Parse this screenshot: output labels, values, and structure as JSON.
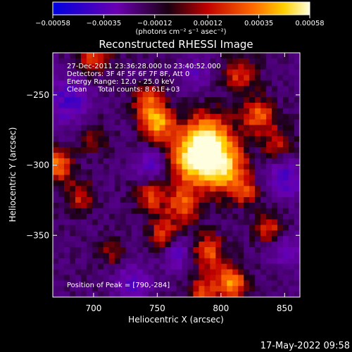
{
  "colorbar": {
    "ticks": [
      "−0.00058",
      "−0.00035",
      "−0.00012",
      "0.00012",
      "0.00035",
      "0.00058"
    ],
    "tick_values": [
      -0.00058,
      -0.00035,
      -0.00012,
      0.00012,
      0.00035,
      0.00058
    ],
    "range": [
      -0.00058,
      0.00058
    ],
    "unit_label": "(photons cm⁻² s⁻¹ asec⁻²)",
    "colors": [
      "#0000e0",
      "#6a00b0",
      "#1a0010",
      "#c00000",
      "#ff6a00",
      "#ffd000",
      "#ffffe0"
    ]
  },
  "chart_data": {
    "type": "heatmap",
    "title": "Reconstructed RHESSI Image",
    "xlabel": "Heliocentric X (arcsec)",
    "ylabel": "Heliocentric Y (arcsec)",
    "xlim": [
      668,
      862
    ],
    "ylim": [
      -394,
      -220
    ],
    "xticks": [
      700,
      750,
      800,
      850
    ],
    "yticks": [
      -250,
      -300,
      -350
    ],
    "xtick_labels": [
      "700",
      "750",
      "800",
      "850"
    ],
    "ytick_labels": [
      "−250",
      "−300",
      "−350"
    ],
    "peak": [
      790,
      -284
    ],
    "hotspots": [
      {
        "x": 790,
        "y": -284,
        "v": 1.0,
        "r": 14
      },
      {
        "x": 778,
        "y": -298,
        "v": 0.75,
        "r": 14
      },
      {
        "x": 805,
        "y": -305,
        "v": 0.7,
        "r": 12
      },
      {
        "x": 750,
        "y": -270,
        "v": 0.85,
        "r": 9
      },
      {
        "x": 742,
        "y": -254,
        "v": 0.5,
        "r": 8
      },
      {
        "x": 700,
        "y": -222,
        "v": 0.55,
        "r": 9
      },
      {
        "x": 815,
        "y": -235,
        "v": 0.5,
        "r": 9
      },
      {
        "x": 830,
        "y": -265,
        "v": 0.6,
        "r": 9
      },
      {
        "x": 845,
        "y": -285,
        "v": 0.45,
        "r": 8
      },
      {
        "x": 672,
        "y": -300,
        "v": 0.7,
        "r": 8
      },
      {
        "x": 690,
        "y": -322,
        "v": 0.45,
        "r": 8
      },
      {
        "x": 745,
        "y": -322,
        "v": 0.5,
        "r": 9
      },
      {
        "x": 770,
        "y": -330,
        "v": 0.55,
        "r": 9
      },
      {
        "x": 755,
        "y": -350,
        "v": 0.55,
        "r": 8
      },
      {
        "x": 790,
        "y": -362,
        "v": 0.6,
        "r": 9
      },
      {
        "x": 838,
        "y": -345,
        "v": 0.55,
        "r": 8
      },
      {
        "x": 808,
        "y": -384,
        "v": 0.75,
        "r": 9
      },
      {
        "x": 785,
        "y": -390,
        "v": 0.55,
        "r": 7
      },
      {
        "x": 700,
        "y": -280,
        "v": 0.35,
        "r": 8
      },
      {
        "x": 715,
        "y": -362,
        "v": 0.35,
        "r": 7
      },
      {
        "x": 820,
        "y": -320,
        "v": 0.4,
        "r": 7
      }
    ],
    "coldspots": [
      {
        "x": 680,
        "y": -255,
        "v": -0.5,
        "r": 12
      },
      {
        "x": 745,
        "y": -300,
        "v": -0.45,
        "r": 9
      },
      {
        "x": 850,
        "y": -310,
        "v": -0.5,
        "r": 10
      },
      {
        "x": 765,
        "y": -362,
        "v": -0.5,
        "r": 8
      },
      {
        "x": 730,
        "y": -385,
        "v": -0.45,
        "r": 10
      },
      {
        "x": 850,
        "y": -360,
        "v": -0.4,
        "r": 9
      },
      {
        "x": 780,
        "y": -235,
        "v": -0.35,
        "r": 8
      }
    ]
  },
  "annotations": {
    "line1": "27-Dec-2011 23:36:28.000 to 23:40:52.000",
    "line2": "Detectors: 3F 4F 5F 6F 7F 8F, Att 0",
    "line3": "Energy Range: 12.0 - 25.0 keV",
    "line4": "Clean     Total counts: 8.61E+03",
    "peak_text": "Position of Peak = [790,-284]"
  },
  "footer": {
    "timestamp": "17-May-2022 09:58"
  }
}
